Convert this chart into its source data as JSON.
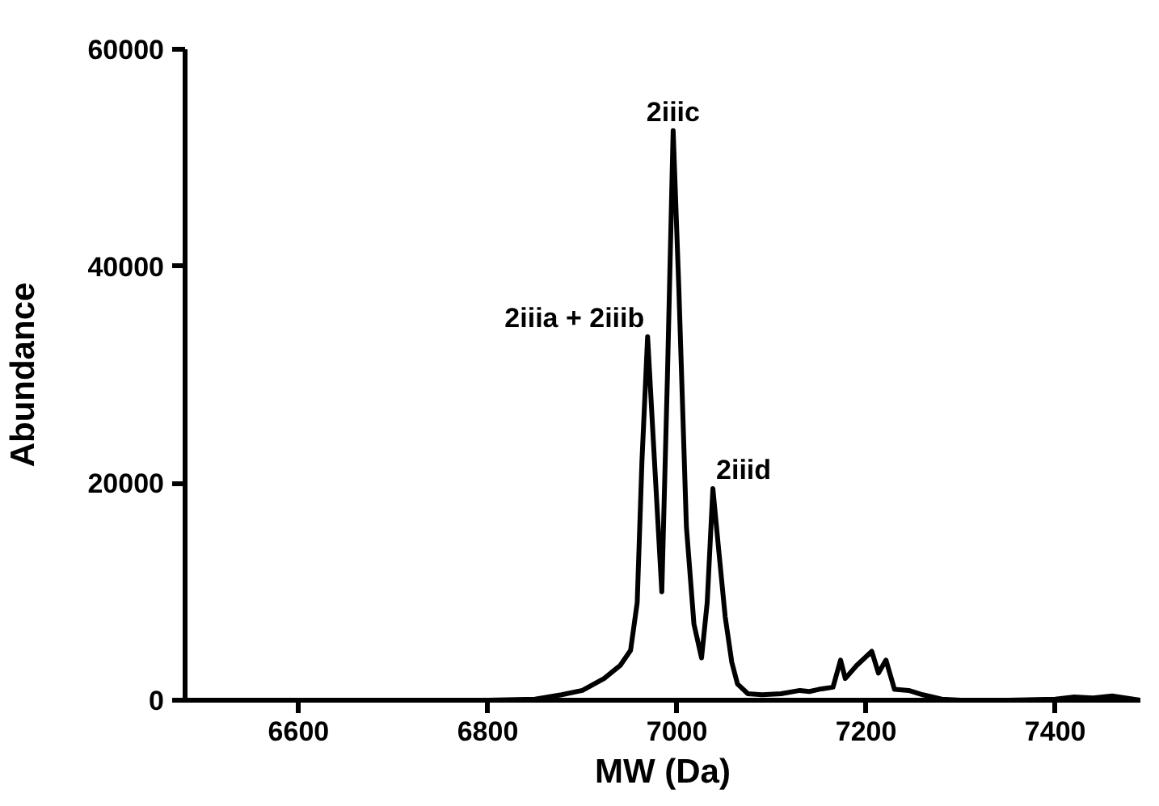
{
  "chart_data": {
    "type": "line",
    "xlabel": "MW (Da)",
    "ylabel": "Abundance",
    "x": [
      6480,
      6600,
      6700,
      6800,
      6850,
      6878,
      6900,
      6923,
      6940,
      6951,
      6958,
      6963,
      6969,
      6975,
      6984,
      6990,
      6996,
      7002,
      7010,
      7018,
      7026,
      7032,
      7038,
      7044,
      7051,
      7058,
      7064,
      7075,
      7090,
      7110,
      7130,
      7140,
      7150,
      7165,
      7173,
      7178,
      7190,
      7206,
      7213,
      7221,
      7230,
      7245,
      7260,
      7280,
      7300,
      7350,
      7400,
      7420,
      7440,
      7460,
      7490
    ],
    "series": [
      {
        "color": "#000000",
        "values": [
          0,
          0,
          0,
          0,
          100,
          500,
          900,
          2000,
          3200,
          4600,
          9000,
          22000,
          33500,
          24000,
          10000,
          30000,
          52500,
          38000,
          16000,
          7000,
          3900,
          9000,
          19500,
          14000,
          7700,
          3500,
          1500,
          600,
          500,
          600,
          900,
          800,
          1000,
          1200,
          3700,
          2000,
          3200,
          4500,
          2500,
          3700,
          1000,
          900,
          500,
          100,
          0,
          0,
          100,
          300,
          200,
          400,
          0
        ]
      }
    ],
    "xlim": [
      6480,
      7490
    ],
    "ylim": [
      0,
      60000
    ],
    "xticks": [
      6600,
      6800,
      7000,
      7200,
      7400
    ],
    "yticks": [
      0,
      20000,
      40000,
      60000
    ],
    "grid": false,
    "marker": "none",
    "line_style": "solid",
    "annotations": [
      {
        "text": "2iiia + 2iiib",
        "x": 6969,
        "y": 33500
      },
      {
        "text": "2iiic",
        "x": 6996,
        "y": 52500
      },
      {
        "text": "2iiid",
        "x": 7038,
        "y": 19500
      }
    ]
  }
}
